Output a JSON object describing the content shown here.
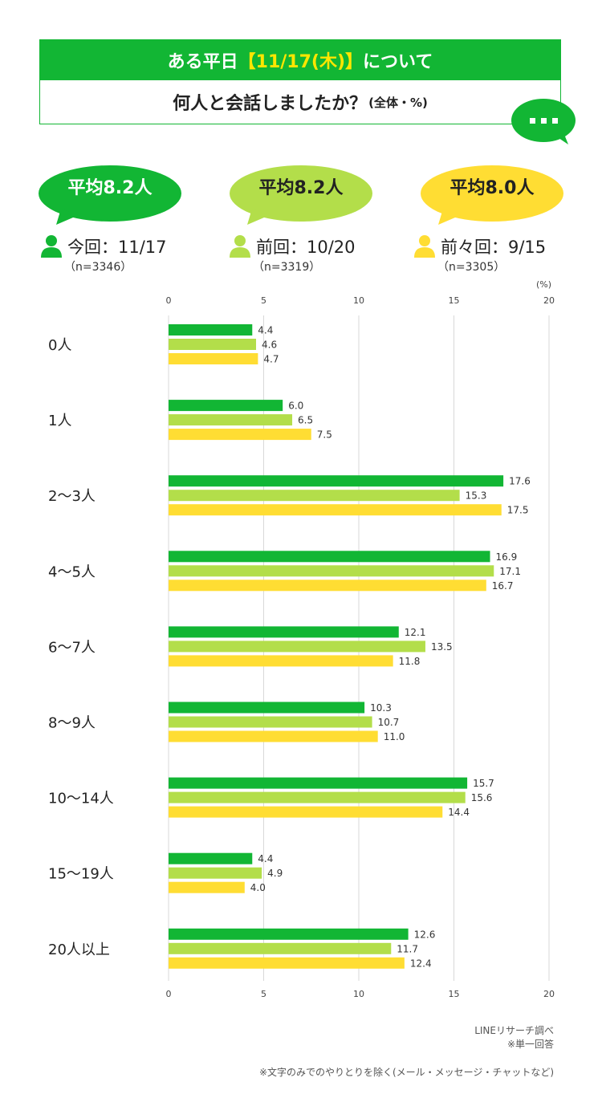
{
  "header": {
    "line1_pre": "ある平日",
    "line1_date": "【11/17(木)】",
    "line1_post": "について",
    "line2": "何人と会話しましたか？",
    "line2_sub": "(全体・%)"
  },
  "averages": [
    {
      "text": "平均8.2人",
      "color": "#12B634",
      "text_color": "#ffffff"
    },
    {
      "text": "平均8.2人",
      "color": "#B3DE4A",
      "text_color": "#222222"
    },
    {
      "text": "平均8.0人",
      "color": "#FFDD33",
      "text_color": "#222222"
    }
  ],
  "periods": [
    {
      "label": "今回：11/17",
      "n": "（n=3346）",
      "color": "#12B634"
    },
    {
      "label": "前回：10/20",
      "n": "（n=3319）",
      "color": "#B3DE4A"
    },
    {
      "label": "前々回：9/15",
      "n": "（n=3305）",
      "color": "#FFDD33"
    }
  ],
  "chart_data": {
    "type": "bar",
    "orientation": "horizontal",
    "unit_label": "(%)",
    "xlim": [
      0,
      20
    ],
    "ticks": [
      0,
      5,
      10,
      15,
      20
    ],
    "grid": true,
    "categories": [
      "0人",
      "1人",
      "2〜3人",
      "4〜5人",
      "6〜7人",
      "8〜9人",
      "10〜14人",
      "15〜19人",
      "20人以上"
    ],
    "series": [
      {
        "name": "今回：11/17",
        "color": "#12B634",
        "values": [
          4.4,
          6.0,
          17.6,
          16.9,
          12.1,
          10.3,
          15.7,
          4.4,
          12.6
        ]
      },
      {
        "name": "前回：10/20",
        "color": "#B3DE4A",
        "values": [
          4.6,
          6.5,
          15.3,
          17.1,
          13.5,
          10.7,
          15.6,
          4.9,
          11.7
        ]
      },
      {
        "name": "前々回：9/15",
        "color": "#FFDD33",
        "values": [
          4.7,
          7.5,
          17.5,
          16.7,
          11.8,
          11.0,
          14.4,
          4.0,
          12.4
        ]
      }
    ]
  },
  "footer": {
    "source": "LINEリサーチ調べ",
    "note1": "※単一回答",
    "note2": "※文字のみでのやりとりを除く(メール・メッセージ・チャットなど)"
  }
}
